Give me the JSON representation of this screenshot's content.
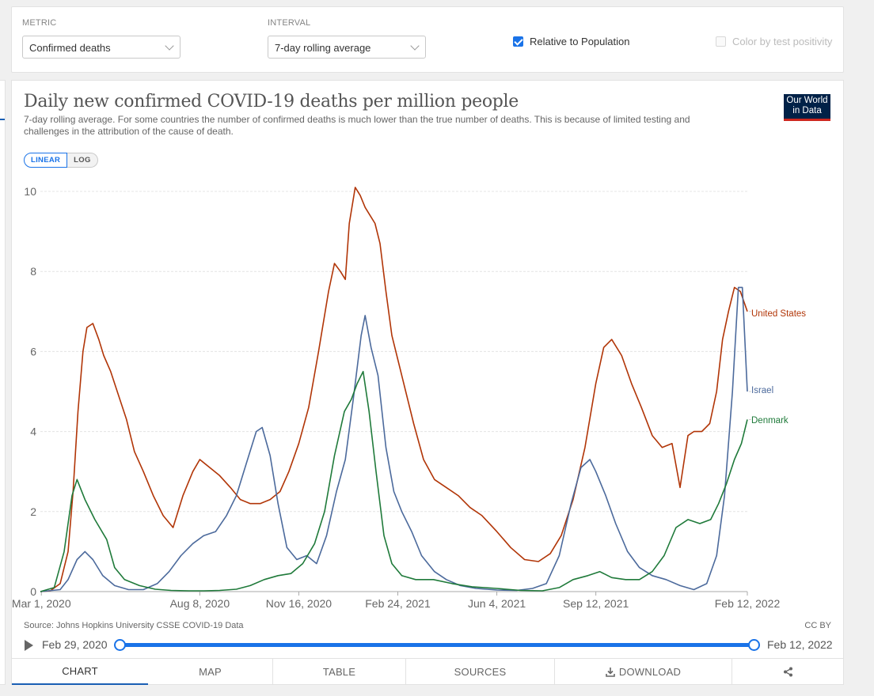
{
  "controls": {
    "metric_label": "METRIC",
    "metric_value": "Confirmed deaths",
    "interval_label": "INTERVAL",
    "interval_value": "7-day rolling average",
    "relative_label": "Relative to Population",
    "relative_checked": true,
    "positivity_label": "Color by test positivity",
    "positivity_checked": false
  },
  "header": {
    "title": "Daily new confirmed COVID-19 deaths per million people",
    "subtitle": "7-day rolling average. For some countries the number of confirmed deaths is much lower than the true number of deaths. This is because of limited testing and challenges in the attribution of the cause of death.",
    "logo_line1": "Our World",
    "logo_line2": "in Data"
  },
  "scale": {
    "linear": "LINEAR",
    "log": "LOG",
    "active": "LINEAR"
  },
  "footer": {
    "source": "Source: Johns Hopkins University CSSE COVID-19 Data",
    "license": "CC BY"
  },
  "timeline": {
    "start": "Feb 29, 2020",
    "end": "Feb 12, 2022"
  },
  "tabs": [
    {
      "label": "CHART",
      "active": true
    },
    {
      "label": "MAP",
      "active": false
    },
    {
      "label": "TABLE",
      "active": false
    },
    {
      "label": "SOURCES",
      "active": false
    },
    {
      "label": "DOWNLOAD",
      "active": false,
      "icon": "download-icon"
    },
    {
      "label": "",
      "active": false,
      "icon": "share-icon"
    }
  ],
  "chart_data": {
    "type": "line",
    "title": "Daily new confirmed COVID-19 deaths per million people",
    "xlabel": "",
    "ylabel": "",
    "x_range": [
      "2020-02-29",
      "2022-02-12"
    ],
    "ylim": [
      0,
      10
    ],
    "yticks": [
      0,
      2,
      4,
      6,
      8,
      10
    ],
    "xticks": [
      {
        "date": "2020-03-01",
        "label": "Mar 1, 2020"
      },
      {
        "date": "2020-08-08",
        "label": "Aug 8, 2020"
      },
      {
        "date": "2020-11-16",
        "label": "Nov 16, 2020"
      },
      {
        "date": "2021-02-24",
        "label": "Feb 24, 2021"
      },
      {
        "date": "2021-06-04",
        "label": "Jun 4, 2021"
      },
      {
        "date": "2021-09-12",
        "label": "Sep 12, 2021"
      },
      {
        "date": "2022-02-12",
        "label": "Feb 12, 2022"
      }
    ],
    "grid": "horizontal",
    "legend": "inline labels at line ends (right)",
    "series": [
      {
        "name": "United States",
        "color": "#b13507",
        "points": [
          [
            "2020-02-29",
            0
          ],
          [
            "2020-03-10",
            0.02
          ],
          [
            "2020-03-20",
            0.2
          ],
          [
            "2020-03-28",
            1.0
          ],
          [
            "2020-04-02",
            2.5
          ],
          [
            "2020-04-07",
            4.5
          ],
          [
            "2020-04-12",
            6.0
          ],
          [
            "2020-04-16",
            6.6
          ],
          [
            "2020-04-22",
            6.7
          ],
          [
            "2020-04-28",
            6.3
          ],
          [
            "2020-05-03",
            5.9
          ],
          [
            "2020-05-10",
            5.5
          ],
          [
            "2020-05-18",
            4.9
          ],
          [
            "2020-05-26",
            4.3
          ],
          [
            "2020-06-03",
            3.5
          ],
          [
            "2020-06-12",
            3.0
          ],
          [
            "2020-06-22",
            2.4
          ],
          [
            "2020-07-02",
            1.9
          ],
          [
            "2020-07-12",
            1.6
          ],
          [
            "2020-07-22",
            2.4
          ],
          [
            "2020-08-01",
            3.0
          ],
          [
            "2020-08-08",
            3.3
          ],
          [
            "2020-08-18",
            3.1
          ],
          [
            "2020-08-28",
            2.9
          ],
          [
            "2020-09-08",
            2.6
          ],
          [
            "2020-09-18",
            2.3
          ],
          [
            "2020-09-28",
            2.2
          ],
          [
            "2020-10-08",
            2.2
          ],
          [
            "2020-10-18",
            2.3
          ],
          [
            "2020-10-28",
            2.5
          ],
          [
            "2020-11-06",
            3.0
          ],
          [
            "2020-11-16",
            3.7
          ],
          [
            "2020-11-26",
            4.6
          ],
          [
            "2020-12-06",
            6.0
          ],
          [
            "2020-12-16",
            7.5
          ],
          [
            "2020-12-22",
            8.2
          ],
          [
            "2020-12-28",
            8.0
          ],
          [
            "2021-01-02",
            7.8
          ],
          [
            "2021-01-06",
            9.2
          ],
          [
            "2021-01-12",
            10.1
          ],
          [
            "2021-01-17",
            9.9
          ],
          [
            "2021-01-22",
            9.6
          ],
          [
            "2021-01-27",
            9.4
          ],
          [
            "2021-02-01",
            9.2
          ],
          [
            "2021-02-06",
            8.7
          ],
          [
            "2021-02-12",
            7.5
          ],
          [
            "2021-02-18",
            6.4
          ],
          [
            "2021-02-24",
            5.8
          ],
          [
            "2021-03-04",
            5.0
          ],
          [
            "2021-03-12",
            4.2
          ],
          [
            "2021-03-22",
            3.3
          ],
          [
            "2021-04-02",
            2.8
          ],
          [
            "2021-04-14",
            2.6
          ],
          [
            "2021-04-26",
            2.4
          ],
          [
            "2021-05-08",
            2.1
          ],
          [
            "2021-05-20",
            1.9
          ],
          [
            "2021-06-04",
            1.5
          ],
          [
            "2021-06-18",
            1.1
          ],
          [
            "2021-07-02",
            0.8
          ],
          [
            "2021-07-16",
            0.75
          ],
          [
            "2021-07-28",
            0.95
          ],
          [
            "2021-08-08",
            1.4
          ],
          [
            "2021-08-20",
            2.3
          ],
          [
            "2021-09-01",
            3.6
          ],
          [
            "2021-09-12",
            5.2
          ],
          [
            "2021-09-20",
            6.1
          ],
          [
            "2021-09-28",
            6.3
          ],
          [
            "2021-10-08",
            5.9
          ],
          [
            "2021-10-18",
            5.2
          ],
          [
            "2021-10-28",
            4.6
          ],
          [
            "2021-11-08",
            3.9
          ],
          [
            "2021-11-18",
            3.6
          ],
          [
            "2021-11-28",
            3.7
          ],
          [
            "2021-12-06",
            2.6
          ],
          [
            "2021-12-14",
            3.9
          ],
          [
            "2021-12-20",
            4.0
          ],
          [
            "2021-12-28",
            4.0
          ],
          [
            "2022-01-05",
            4.2
          ],
          [
            "2022-01-12",
            5.0
          ],
          [
            "2022-01-18",
            6.3
          ],
          [
            "2022-01-24",
            7.0
          ],
          [
            "2022-01-30",
            7.6
          ],
          [
            "2022-02-05",
            7.5
          ],
          [
            "2022-02-12",
            7.0
          ]
        ]
      },
      {
        "name": "Israel",
        "color": "#4c6a9c",
        "points": [
          [
            "2020-02-29",
            0
          ],
          [
            "2020-03-20",
            0.05
          ],
          [
            "2020-03-28",
            0.3
          ],
          [
            "2020-04-06",
            0.8
          ],
          [
            "2020-04-14",
            1.0
          ],
          [
            "2020-04-22",
            0.8
          ],
          [
            "2020-05-02",
            0.4
          ],
          [
            "2020-05-14",
            0.15
          ],
          [
            "2020-05-28",
            0.05
          ],
          [
            "2020-06-12",
            0.05
          ],
          [
            "2020-06-26",
            0.2
          ],
          [
            "2020-07-08",
            0.5
          ],
          [
            "2020-07-20",
            0.9
          ],
          [
            "2020-08-01",
            1.2
          ],
          [
            "2020-08-12",
            1.4
          ],
          [
            "2020-08-24",
            1.5
          ],
          [
            "2020-09-04",
            1.9
          ],
          [
            "2020-09-14",
            2.4
          ],
          [
            "2020-09-24",
            3.2
          ],
          [
            "2020-10-04",
            4.0
          ],
          [
            "2020-10-10",
            4.1
          ],
          [
            "2020-10-18",
            3.4
          ],
          [
            "2020-10-26",
            2.2
          ],
          [
            "2020-11-04",
            1.1
          ],
          [
            "2020-11-14",
            0.8
          ],
          [
            "2020-11-24",
            0.9
          ],
          [
            "2020-12-04",
            0.7
          ],
          [
            "2020-12-14",
            1.4
          ],
          [
            "2020-12-24",
            2.5
          ],
          [
            "2021-01-02",
            3.3
          ],
          [
            "2021-01-10",
            4.8
          ],
          [
            "2021-01-18",
            6.4
          ],
          [
            "2021-01-22",
            6.9
          ],
          [
            "2021-01-28",
            6.1
          ],
          [
            "2021-02-04",
            5.4
          ],
          [
            "2021-02-12",
            3.6
          ],
          [
            "2021-02-20",
            2.5
          ],
          [
            "2021-02-28",
            2.0
          ],
          [
            "2021-03-10",
            1.5
          ],
          [
            "2021-03-20",
            0.9
          ],
          [
            "2021-04-02",
            0.5
          ],
          [
            "2021-04-14",
            0.3
          ],
          [
            "2021-04-28",
            0.15
          ],
          [
            "2021-05-14",
            0.08
          ],
          [
            "2021-06-04",
            0.04
          ],
          [
            "2021-06-24",
            0.03
          ],
          [
            "2021-07-10",
            0.08
          ],
          [
            "2021-07-24",
            0.2
          ],
          [
            "2021-08-06",
            0.9
          ],
          [
            "2021-08-18",
            2.2
          ],
          [
            "2021-08-28",
            3.1
          ],
          [
            "2021-09-06",
            3.3
          ],
          [
            "2021-09-12",
            3.0
          ],
          [
            "2021-09-22",
            2.4
          ],
          [
            "2021-10-02",
            1.7
          ],
          [
            "2021-10-14",
            1.0
          ],
          [
            "2021-10-26",
            0.6
          ],
          [
            "2021-11-08",
            0.4
          ],
          [
            "2021-11-22",
            0.3
          ],
          [
            "2021-12-06",
            0.15
          ],
          [
            "2021-12-20",
            0.05
          ],
          [
            "2022-01-02",
            0.2
          ],
          [
            "2022-01-12",
            0.9
          ],
          [
            "2022-01-20",
            2.4
          ],
          [
            "2022-01-28",
            5.0
          ],
          [
            "2022-02-03",
            7.6
          ],
          [
            "2022-02-07",
            7.6
          ],
          [
            "2022-02-12",
            5.0
          ]
        ]
      },
      {
        "name": "Denmark",
        "color": "#1f7a3a",
        "points": [
          [
            "2020-02-29",
            0
          ],
          [
            "2020-03-14",
            0.1
          ],
          [
            "2020-03-24",
            1.0
          ],
          [
            "2020-04-01",
            2.4
          ],
          [
            "2020-04-06",
            2.8
          ],
          [
            "2020-04-14",
            2.3
          ],
          [
            "2020-04-24",
            1.8
          ],
          [
            "2020-05-06",
            1.3
          ],
          [
            "2020-05-14",
            0.6
          ],
          [
            "2020-05-24",
            0.3
          ],
          [
            "2020-06-08",
            0.15
          ],
          [
            "2020-06-24",
            0.06
          ],
          [
            "2020-07-10",
            0.03
          ],
          [
            "2020-07-28",
            0.02
          ],
          [
            "2020-08-12",
            0.02
          ],
          [
            "2020-08-28",
            0.03
          ],
          [
            "2020-09-14",
            0.06
          ],
          [
            "2020-09-28",
            0.15
          ],
          [
            "2020-10-12",
            0.3
          ],
          [
            "2020-10-26",
            0.4
          ],
          [
            "2020-11-08",
            0.45
          ],
          [
            "2020-11-20",
            0.7
          ],
          [
            "2020-12-02",
            1.2
          ],
          [
            "2020-12-12",
            2.0
          ],
          [
            "2020-12-22",
            3.4
          ],
          [
            "2021-01-01",
            4.5
          ],
          [
            "2021-01-08",
            4.8
          ],
          [
            "2021-01-14",
            5.2
          ],
          [
            "2021-01-20",
            5.5
          ],
          [
            "2021-01-26",
            4.5
          ],
          [
            "2021-02-02",
            3.0
          ],
          [
            "2021-02-10",
            1.4
          ],
          [
            "2021-02-18",
            0.7
          ],
          [
            "2021-02-28",
            0.4
          ],
          [
            "2021-03-14",
            0.3
          ],
          [
            "2021-04-01",
            0.3
          ],
          [
            "2021-04-20",
            0.2
          ],
          [
            "2021-05-10",
            0.12
          ],
          [
            "2021-06-04",
            0.08
          ],
          [
            "2021-06-28",
            0.03
          ],
          [
            "2021-07-20",
            0.02
          ],
          [
            "2021-08-06",
            0.1
          ],
          [
            "2021-08-20",
            0.3
          ],
          [
            "2021-09-04",
            0.4
          ],
          [
            "2021-09-16",
            0.5
          ],
          [
            "2021-09-28",
            0.35
          ],
          [
            "2021-10-12",
            0.3
          ],
          [
            "2021-10-26",
            0.3
          ],
          [
            "2021-11-08",
            0.5
          ],
          [
            "2021-11-20",
            0.9
          ],
          [
            "2021-12-02",
            1.6
          ],
          [
            "2021-12-14",
            1.8
          ],
          [
            "2021-12-26",
            1.7
          ],
          [
            "2022-01-06",
            1.8
          ],
          [
            "2022-01-14",
            2.2
          ],
          [
            "2022-01-22",
            2.7
          ],
          [
            "2022-01-30",
            3.3
          ],
          [
            "2022-02-06",
            3.7
          ],
          [
            "2022-02-12",
            4.3
          ]
        ]
      }
    ]
  }
}
